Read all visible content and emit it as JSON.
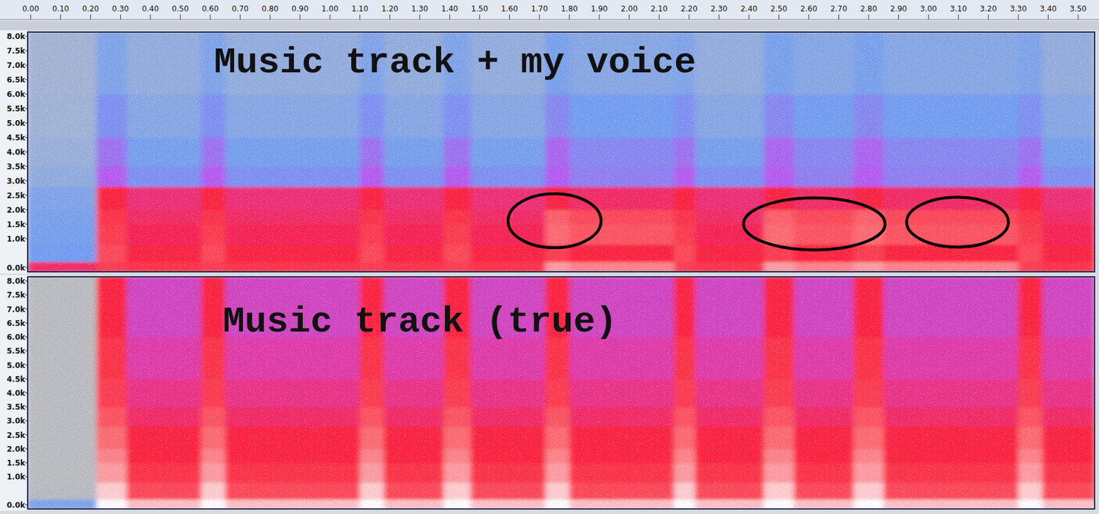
{
  "chart_data": [
    {
      "type": "heatmap",
      "title": "Music track + my voice",
      "xlim": [
        -0.01,
        3.555
      ],
      "ylim": [
        -150,
        8150
      ],
      "clim": [
        0,
        1
      ],
      "xticks": [
        {
          "value": 0,
          "label": "0.00"
        },
        {
          "value": 0.1,
          "label": "0.10"
        },
        {
          "value": 0.2,
          "label": "0.20"
        },
        {
          "value": 0.3,
          "label": "0.30"
        },
        {
          "value": 0.4,
          "label": "0.40"
        },
        {
          "value": 0.5,
          "label": "0.50"
        },
        {
          "value": 0.6,
          "label": "0.60"
        },
        {
          "value": 0.7,
          "label": "0.70"
        },
        {
          "value": 0.8,
          "label": "0.80"
        },
        {
          "value": 0.9,
          "label": "0.90"
        },
        {
          "value": 1,
          "label": "1.00"
        },
        {
          "value": 1.1,
          "label": "1.10"
        },
        {
          "value": 1.2,
          "label": "1.20"
        },
        {
          "value": 1.3,
          "label": "1.30"
        },
        {
          "value": 1.4,
          "label": "1.40"
        },
        {
          "value": 1.5,
          "label": "1.50"
        },
        {
          "value": 1.6,
          "label": "1.60"
        },
        {
          "value": 1.7,
          "label": "1.70"
        },
        {
          "value": 1.8,
          "label": "1.80"
        },
        {
          "value": 1.9,
          "label": "1.90"
        },
        {
          "value": 2,
          "label": "2.00"
        },
        {
          "value": 2.1,
          "label": "2.10"
        },
        {
          "value": 2.2,
          "label": "2.20"
        },
        {
          "value": 2.3,
          "label": "2.30"
        },
        {
          "value": 2.4,
          "label": "2.40"
        },
        {
          "value": 2.5,
          "label": "2.50"
        },
        {
          "value": 2.6,
          "label": "2.60"
        },
        {
          "value": 2.7,
          "label": "2.70"
        },
        {
          "value": 2.8,
          "label": "2.80"
        },
        {
          "value": 2.9,
          "label": "2.90"
        },
        {
          "value": 3,
          "label": "3.00"
        },
        {
          "value": 3.1,
          "label": "3.10"
        },
        {
          "value": 3.2,
          "label": "3.20"
        },
        {
          "value": 3.3,
          "label": "3.30"
        },
        {
          "value": 3.4,
          "label": "3.40"
        },
        {
          "value": 3.5,
          "label": "3.50"
        }
      ],
      "yticks": [
        {
          "value": 8000,
          "label": "8.0k"
        },
        {
          "value": 7500,
          "label": "7.5k"
        },
        {
          "value": 7000,
          "label": "7.0k"
        },
        {
          "value": 6500,
          "label": "6.5k"
        },
        {
          "value": 6000,
          "label": "6.0k"
        },
        {
          "value": 5500,
          "label": "5.5k"
        },
        {
          "value": 5000,
          "label": "5.0k"
        },
        {
          "value": 4500,
          "label": "4.5k"
        },
        {
          "value": 4000,
          "label": "4.0k"
        },
        {
          "value": 3500,
          "label": "3.5k"
        },
        {
          "value": 3000,
          "label": "3.0k"
        },
        {
          "value": 2500,
          "label": "2.5k"
        },
        {
          "value": 2000,
          "label": "2.0k"
        },
        {
          "value": 1500,
          "label": "1.5k"
        },
        {
          "value": 1000,
          "label": "1.0k"
        },
        {
          "value": 0,
          "label": "0.0k"
        }
      ],
      "x_edges": [
        -0.01,
        0.22,
        0.32,
        0.57,
        0.65,
        1.1,
        1.18,
        1.38,
        1.47,
        1.72,
        1.8,
        2.15,
        2.22,
        2.45,
        2.55,
        2.75,
        2.85,
        3.3,
        3.38,
        3.555
      ],
      "y_edges": [
        -150,
        200,
        800,
        1500,
        2000,
        2800,
        3500,
        4500,
        6000,
        8150
      ],
      "cells": [
        [
          0.7,
          0.8,
          0.78,
          0.8,
          0.78,
          0.8,
          0.78,
          0.8,
          0.78,
          0.92,
          0.9,
          0.8,
          0.78,
          0.92,
          0.9,
          0.92,
          0.9,
          0.8,
          0.78
        ],
        [
          0.35,
          0.82,
          0.74,
          0.82,
          0.74,
          0.82,
          0.74,
          0.82,
          0.74,
          0.8,
          0.76,
          0.82,
          0.74,
          0.8,
          0.76,
          0.8,
          0.76,
          0.82,
          0.74
        ],
        [
          0.33,
          0.8,
          0.72,
          0.8,
          0.72,
          0.8,
          0.72,
          0.8,
          0.72,
          0.88,
          0.84,
          0.8,
          0.72,
          0.88,
          0.84,
          0.88,
          0.84,
          0.8,
          0.72
        ],
        [
          0.32,
          0.78,
          0.7,
          0.78,
          0.7,
          0.78,
          0.7,
          0.78,
          0.7,
          0.86,
          0.82,
          0.78,
          0.7,
          0.86,
          0.82,
          0.86,
          0.82,
          0.78,
          0.7
        ],
        [
          0.3,
          0.76,
          0.68,
          0.76,
          0.68,
          0.76,
          0.68,
          0.76,
          0.68,
          0.74,
          0.7,
          0.76,
          0.68,
          0.74,
          0.7,
          0.74,
          0.7,
          0.76,
          0.68
        ],
        [
          0.25,
          0.5,
          0.38,
          0.5,
          0.38,
          0.5,
          0.38,
          0.5,
          0.38,
          0.5,
          0.42,
          0.5,
          0.38,
          0.5,
          0.42,
          0.5,
          0.42,
          0.5,
          0.38
        ],
        [
          0.22,
          0.45,
          0.33,
          0.45,
          0.33,
          0.45,
          0.33,
          0.45,
          0.33,
          0.48,
          0.4,
          0.45,
          0.33,
          0.48,
          0.4,
          0.48,
          0.4,
          0.45,
          0.33
        ],
        [
          0.2,
          0.38,
          0.28,
          0.38,
          0.28,
          0.38,
          0.28,
          0.38,
          0.28,
          0.4,
          0.34,
          0.38,
          0.28,
          0.4,
          0.34,
          0.4,
          0.34,
          0.38,
          0.28
        ],
        [
          0.18,
          0.3,
          0.24,
          0.3,
          0.24,
          0.3,
          0.24,
          0.3,
          0.24,
          0.32,
          0.28,
          0.3,
          0.24,
          0.32,
          0.28,
          0.32,
          0.28,
          0.3,
          0.24
        ]
      ],
      "highlights": [
        {
          "t0": 1.595,
          "t1": 1.906,
          "f0": 681,
          "f1": 2553
        },
        {
          "t0": 2.382,
          "t1": 2.855,
          "f0": 608,
          "f1": 2407
        },
        {
          "t0": 2.927,
          "t1": 3.267,
          "f0": 705,
          "f1": 2432
        }
      ]
    },
    {
      "type": "heatmap",
      "title": "Music track (true)",
      "tick_labels": "y",
      "xlim": [
        -0.01,
        3.555
      ],
      "ylim": [
        -150,
        8150
      ],
      "clim": [
        0,
        1
      ],
      "yticks": [
        {
          "value": 8000,
          "label": "8.0k"
        },
        {
          "value": 7500,
          "label": "7.5k"
        },
        {
          "value": 7000,
          "label": "7.0k"
        },
        {
          "value": 6500,
          "label": "6.5k"
        },
        {
          "value": 6000,
          "label": "6.0k"
        },
        {
          "value": 5500,
          "label": "5.5k"
        },
        {
          "value": 5000,
          "label": "5.0k"
        },
        {
          "value": 4500,
          "label": "4.5k"
        },
        {
          "value": 4000,
          "label": "4.0k"
        },
        {
          "value": 3500,
          "label": "3.5k"
        },
        {
          "value": 3000,
          "label": "3.0k"
        },
        {
          "value": 2500,
          "label": "2.5k"
        },
        {
          "value": 2000,
          "label": "2.0k"
        },
        {
          "value": 1500,
          "label": "1.5k"
        },
        {
          "value": 1000,
          "label": "1.0k"
        },
        {
          "value": 0,
          "label": "0.0k"
        }
      ],
      "x_edges": [
        -0.01,
        0.22,
        0.32,
        0.57,
        0.65,
        1.1,
        1.18,
        1.38,
        1.47,
        1.72,
        1.8,
        2.15,
        2.22,
        2.45,
        2.55,
        2.75,
        2.85,
        3.3,
        3.38,
        3.555
      ],
      "y_edges": [
        -150,
        200,
        800,
        1500,
        2000,
        2800,
        3500,
        4500,
        6000,
        8150
      ],
      "cells": [
        [
          0.3,
          1,
          0.95,
          1,
          0.95,
          1,
          0.95,
          1,
          0.95,
          1,
          0.95,
          1,
          0.95,
          1,
          0.95,
          1,
          0.95,
          1,
          0.95
        ],
        [
          0.05,
          0.96,
          0.82,
          0.96,
          0.82,
          0.96,
          0.82,
          0.96,
          0.82,
          0.96,
          0.82,
          0.96,
          0.82,
          0.96,
          0.82,
          0.96,
          0.82,
          0.96,
          0.82
        ],
        [
          0.02,
          0.92,
          0.78,
          0.92,
          0.78,
          0.92,
          0.78,
          0.92,
          0.78,
          0.92,
          0.78,
          0.92,
          0.78,
          0.92,
          0.78,
          0.92,
          0.78,
          0.92,
          0.78
        ],
        [
          0.02,
          0.9,
          0.76,
          0.9,
          0.76,
          0.9,
          0.76,
          0.9,
          0.76,
          0.9,
          0.76,
          0.9,
          0.76,
          0.9,
          0.76,
          0.9,
          0.76,
          0.9,
          0.76
        ],
        [
          0.02,
          0.88,
          0.74,
          0.88,
          0.74,
          0.88,
          0.74,
          0.88,
          0.74,
          0.88,
          0.74,
          0.88,
          0.74,
          0.88,
          0.74,
          0.88,
          0.74,
          0.88,
          0.74
        ],
        [
          0.02,
          0.84,
          0.7,
          0.84,
          0.7,
          0.84,
          0.7,
          0.84,
          0.7,
          0.84,
          0.7,
          0.84,
          0.7,
          0.84,
          0.7,
          0.84,
          0.7,
          0.84,
          0.7
        ],
        [
          0.02,
          0.8,
          0.66,
          0.8,
          0.66,
          0.8,
          0.66,
          0.8,
          0.66,
          0.8,
          0.66,
          0.8,
          0.66,
          0.8,
          0.66,
          0.8,
          0.66,
          0.8,
          0.66
        ],
        [
          0.02,
          0.78,
          0.62,
          0.78,
          0.62,
          0.78,
          0.62,
          0.78,
          0.62,
          0.78,
          0.62,
          0.78,
          0.62,
          0.78,
          0.62,
          0.78,
          0.62,
          0.78,
          0.62
        ],
        [
          0.02,
          0.76,
          0.58,
          0.76,
          0.58,
          0.76,
          0.58,
          0.76,
          0.58,
          0.76,
          0.58,
          0.76,
          0.58,
          0.76,
          0.58,
          0.76,
          0.58,
          0.76,
          0.58
        ]
      ]
    }
  ]
}
